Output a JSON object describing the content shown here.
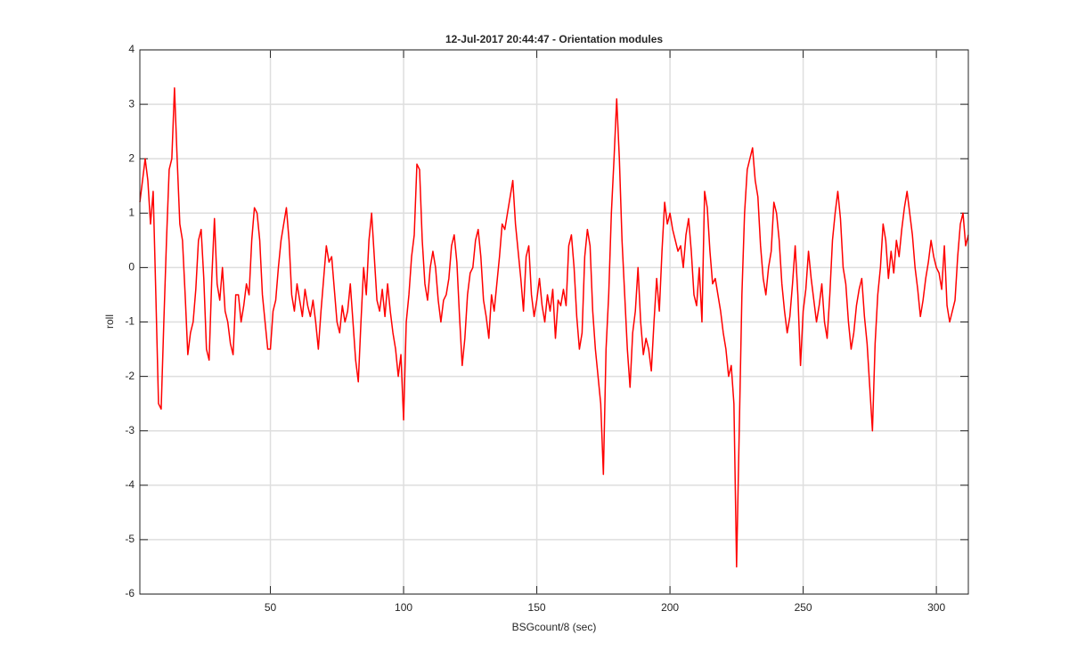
{
  "chart_data": {
    "type": "line",
    "title": "12-Jul-2017 20:44:47 - Orientation modules",
    "x_label": "BSGcount/8 (sec)",
    "y_label": "roll",
    "xlim": [
      1,
      312
    ],
    "xticks": [
      50,
      100,
      150,
      200,
      250,
      300
    ],
    "ylim": [
      -6,
      4
    ],
    "yticks": [
      -6,
      -5,
      -4,
      -3,
      -2,
      -1,
      0,
      1,
      2,
      3,
      4
    ],
    "grid": true,
    "x": [
      1,
      2,
      3,
      4,
      5,
      6,
      7,
      8,
      9,
      10,
      11,
      12,
      13,
      14,
      15,
      16,
      17,
      18,
      19,
      20,
      21,
      22,
      23,
      24,
      25,
      26,
      27,
      28,
      29,
      30,
      31,
      32,
      33,
      34,
      35,
      36,
      37,
      38,
      39,
      40,
      41,
      42,
      43,
      44,
      45,
      46,
      47,
      48,
      49,
      50,
      51,
      52,
      53,
      54,
      55,
      56,
      57,
      58,
      59,
      60,
      61,
      62,
      63,
      64,
      65,
      66,
      67,
      68,
      69,
      70,
      71,
      72,
      73,
      74,
      75,
      76,
      77,
      78,
      79,
      80,
      81,
      82,
      83,
      84,
      85,
      86,
      87,
      88,
      89,
      90,
      91,
      92,
      93,
      94,
      95,
      96,
      97,
      98,
      99,
      100,
      101,
      102,
      103,
      104,
      105,
      106,
      107,
      108,
      109,
      110,
      111,
      112,
      113,
      114,
      115,
      116,
      117,
      118,
      119,
      120,
      121,
      122,
      123,
      124,
      125,
      126,
      127,
      128,
      129,
      130,
      131,
      132,
      133,
      134,
      135,
      136,
      137,
      138,
      139,
      140,
      141,
      142,
      143,
      144,
      145,
      146,
      147,
      148,
      149,
      150,
      151,
      152,
      153,
      154,
      155,
      156,
      157,
      158,
      159,
      160,
      161,
      162,
      163,
      164,
      165,
      166,
      167,
      168,
      169,
      170,
      171,
      172,
      173,
      174,
      175,
      176,
      177,
      178,
      179,
      180,
      181,
      182,
      183,
      184,
      185,
      186,
      187,
      188,
      189,
      190,
      191,
      192,
      193,
      194,
      195,
      196,
      197,
      198,
      199,
      200,
      201,
      202,
      203,
      204,
      205,
      206,
      207,
      208,
      209,
      210,
      211,
      212,
      213,
      214,
      215,
      216,
      217,
      218,
      219,
      220,
      221,
      222,
      223,
      224,
      225,
      226,
      227,
      228,
      229,
      230,
      231,
      232,
      233,
      234,
      235,
      236,
      237,
      238,
      239,
      240,
      241,
      242,
      243,
      244,
      245,
      246,
      247,
      248,
      249,
      250,
      251,
      252,
      253,
      254,
      255,
      256,
      257,
      258,
      259,
      260,
      261,
      262,
      263,
      264,
      265,
      266,
      267,
      268,
      269,
      270,
      271,
      272,
      273,
      274,
      275,
      276,
      277,
      278,
      279,
      280,
      281,
      282,
      283,
      284,
      285,
      286,
      287,
      288,
      289,
      290,
      291,
      292,
      293,
      294,
      295,
      296,
      297,
      298,
      299,
      300,
      301,
      302,
      303,
      304,
      305,
      306,
      307,
      308,
      309,
      310,
      311,
      312
    ],
    "series": [
      {
        "color": "#ff0000",
        "values": [
          1.2,
          1.6,
          2.0,
          1.6,
          0.8,
          1.4,
          -0.5,
          -2.5,
          -2.6,
          -1.0,
          0.5,
          1.8,
          2.0,
          3.3,
          2.0,
          0.8,
          0.5,
          -0.5,
          -1.6,
          -1.2,
          -1.0,
          -0.4,
          0.5,
          0.7,
          -0.2,
          -1.5,
          -1.7,
          -0.2,
          0.9,
          -0.3,
          -0.6,
          0.0,
          -0.8,
          -1.0,
          -1.4,
          -1.6,
          -0.5,
          -0.5,
          -1.0,
          -0.7,
          -0.3,
          -0.5,
          0.5,
          1.1,
          1.0,
          0.5,
          -0.5,
          -1.0,
          -1.5,
          -1.5,
          -0.8,
          -0.6,
          0.0,
          0.5,
          0.8,
          1.1,
          0.5,
          -0.5,
          -0.8,
          -0.3,
          -0.6,
          -0.9,
          -0.4,
          -0.7,
          -0.9,
          -0.6,
          -1.0,
          -1.5,
          -0.8,
          -0.2,
          0.4,
          0.1,
          0.2,
          -0.4,
          -1.0,
          -1.2,
          -0.7,
          -1.0,
          -0.8,
          -0.3,
          -1.0,
          -1.7,
          -2.1,
          -1.0,
          0.0,
          -0.5,
          0.5,
          1.0,
          0.2,
          -0.6,
          -0.8,
          -0.4,
          -0.9,
          -0.3,
          -0.8,
          -1.2,
          -1.5,
          -2.0,
          -1.6,
          -2.8,
          -1.0,
          -0.5,
          0.2,
          0.6,
          1.9,
          1.8,
          0.5,
          -0.3,
          -0.6,
          0.0,
          0.3,
          0.0,
          -0.6,
          -1.0,
          -0.6,
          -0.5,
          -0.2,
          0.4,
          0.6,
          0.1,
          -0.9,
          -1.8,
          -1.3,
          -0.5,
          -0.1,
          0.0,
          0.5,
          0.7,
          0.2,
          -0.6,
          -0.9,
          -1.3,
          -0.5,
          -0.8,
          -0.3,
          0.2,
          0.8,
          0.7,
          1.0,
          1.3,
          1.6,
          0.8,
          0.3,
          -0.2,
          -0.8,
          0.2,
          0.4,
          -0.5,
          -0.9,
          -0.6,
          -0.2,
          -0.7,
          -1.0,
          -0.5,
          -0.8,
          -0.4,
          -1.3,
          -0.6,
          -0.7,
          -0.4,
          -0.7,
          0.4,
          0.6,
          0.0,
          -0.9,
          -1.5,
          -1.2,
          0.2,
          0.7,
          0.4,
          -0.8,
          -1.5,
          -2.0,
          -2.5,
          -3.8,
          -1.5,
          -0.5,
          1.0,
          2.0,
          3.1,
          2.0,
          0.5,
          -0.5,
          -1.5,
          -2.2,
          -1.2,
          -0.8,
          0.0,
          -1.0,
          -1.6,
          -1.3,
          -1.5,
          -1.9,
          -1.0,
          -0.2,
          -0.8,
          0.3,
          1.2,
          0.8,
          1.0,
          0.7,
          0.5,
          0.3,
          0.4,
          0.0,
          0.6,
          0.9,
          0.3,
          -0.5,
          -0.7,
          0.0,
          -1.0,
          1.4,
          1.1,
          0.3,
          -0.3,
          -0.2,
          -0.5,
          -0.8,
          -1.2,
          -1.5,
          -2.0,
          -1.8,
          -2.5,
          -5.5,
          -3.0,
          -0.5,
          1.0,
          1.8,
          2.0,
          2.2,
          1.6,
          1.3,
          0.4,
          -0.2,
          -0.5,
          0.0,
          0.3,
          1.2,
          1.0,
          0.5,
          -0.3,
          -0.8,
          -1.2,
          -0.9,
          -0.3,
          0.4,
          -0.5,
          -1.8,
          -0.8,
          -0.4,
          0.3,
          -0.2,
          -0.6,
          -1.0,
          -0.7,
          -0.3,
          -1.0,
          -1.3,
          -0.5,
          0.5,
          1.0,
          1.4,
          0.9,
          0.0,
          -0.3,
          -1.0,
          -1.5,
          -1.2,
          -0.7,
          -0.4,
          -0.2,
          -0.9,
          -1.4,
          -2.2,
          -3.0,
          -1.4,
          -0.5,
          0.0,
          0.8,
          0.5,
          -0.2,
          0.3,
          -0.1,
          0.5,
          0.2,
          0.7,
          1.1,
          1.4,
          1.0,
          0.6,
          0.0,
          -0.4,
          -0.9,
          -0.6,
          -0.2,
          0.1,
          0.5,
          0.2,
          0.0,
          -0.1,
          -0.4,
          0.4,
          -0.7,
          -1.0,
          -0.8,
          -0.6,
          0.2,
          0.8,
          1.0,
          0.4,
          0.6
        ]
      }
    ]
  }
}
